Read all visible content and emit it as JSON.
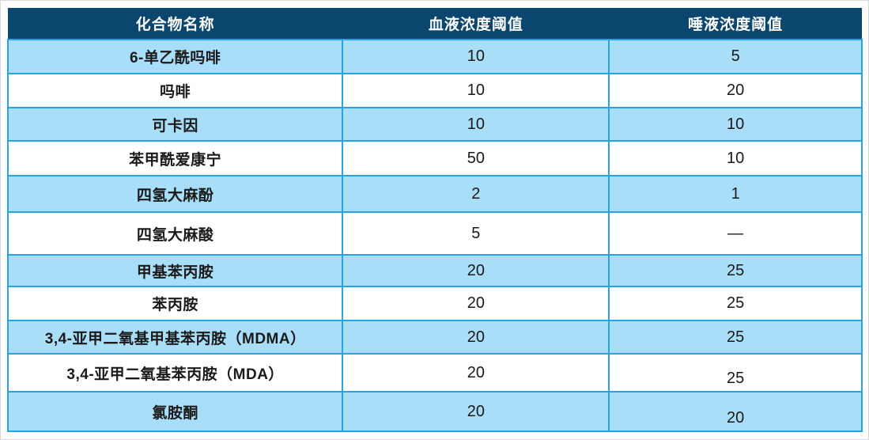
{
  "colors": {
    "header_bg": "#0a466d",
    "header_text": "#ffffff",
    "row_alt_bg": "#a9def9",
    "row_bg": "#ffffff",
    "grid_line": "#29a2e2",
    "body_text": "#1a1a1a"
  },
  "table": {
    "columns": [
      {
        "label": "化合物名称"
      },
      {
        "label": "血液浓度阈值"
      },
      {
        "label": "唾液浓度阈值"
      }
    ],
    "rows": [
      {
        "name": "6-单乙酰吗啡",
        "blood": "10",
        "saliva": "5"
      },
      {
        "name": "吗啡",
        "blood": "10",
        "saliva": "20"
      },
      {
        "name": "可卡因",
        "blood": "10",
        "saliva": "10"
      },
      {
        "name": "苯甲酰爱康宁",
        "blood": "50",
        "saliva": "10"
      },
      {
        "name": "四氢大麻酚",
        "blood": "2",
        "saliva": "1"
      },
      {
        "name": "四氢大麻酸",
        "blood": "5",
        "saliva": "—"
      },
      {
        "name": "甲基苯丙胺",
        "blood": "20",
        "saliva": "25"
      },
      {
        "name": "苯丙胺",
        "blood": "20",
        "saliva": "25"
      },
      {
        "name": "3,4-亚甲二氧基甲基苯丙胺（MDMA）",
        "blood": "20",
        "saliva": "25"
      },
      {
        "name": "3,4-亚甲二氧基苯丙胺（MDA）",
        "blood": "20",
        "saliva": "25"
      },
      {
        "name": "氯胺酮",
        "blood": "20",
        "saliva": "20"
      }
    ]
  }
}
